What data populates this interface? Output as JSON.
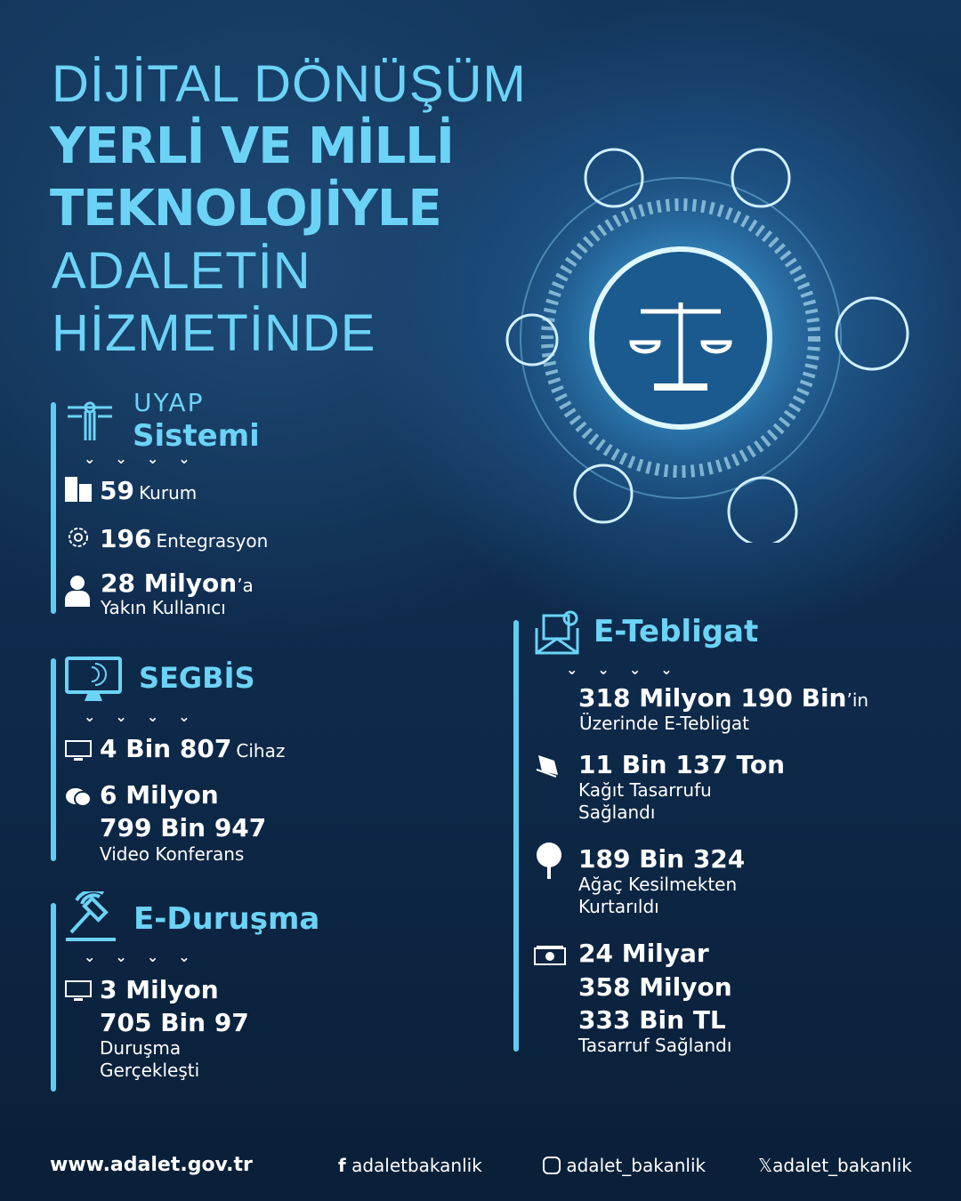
{
  "title": {
    "line1": "DİJİTAL DÖNÜŞÜM",
    "line2": "YERLİ VE MİLLİ",
    "line3": "TEKNOLOJİYLE",
    "line4": "ADALETİN",
    "line5": "HİZMETİNDE"
  },
  "uyap": {
    "title1": "UYAP",
    "title2": "Sistemi",
    "items": [
      {
        "value": "59",
        "label": "Kurum",
        "icon": "buildings-icon"
      },
      {
        "value": "196",
        "label": "Entegrasyon",
        "icon": "gear-network-icon"
      },
      {
        "value": "28 Milyon",
        "suffix": "’a",
        "label": "Yakın Kullanıcı",
        "icon": "user-icon"
      }
    ]
  },
  "segbis": {
    "title": "SEGBİS",
    "items": [
      {
        "value": "4 Bin 807",
        "label": "Cihaz",
        "icon": "monitor-icon"
      },
      {
        "value1": "6 Milyon",
        "value2": "799 Bin 947",
        "label": "Video Konferans",
        "icon": "chat-icon"
      }
    ]
  },
  "eduruşma": {
    "title": "E-Duruşma",
    "items": [
      {
        "value1": "3 Milyon",
        "value2": "705 Bin 97",
        "label1": "Duruşma",
        "label2": "Gerçekleşti",
        "icon": "monitor-icon"
      }
    ]
  },
  "etebligat": {
    "title": "E-Tebligat",
    "items": [
      {
        "value": "318 Milyon 190 Bin",
        "suffix": "’in",
        "label": "Üzerinde E-Tebligat",
        "icon": "envelope-icon"
      },
      {
        "value": "11 Bin 137 Ton",
        "label1": "Kağıt Tasarrufu",
        "label2": "Sağlandı",
        "icon": "paper-stack-icon"
      },
      {
        "value": "189 Bin 324",
        "label1": "Ağaç Kesilmekten",
        "label2": "Kurtarıldı",
        "icon": "tree-icon"
      },
      {
        "value1": "24 Milyar",
        "value2": "358 Milyon",
        "value3": "333 Bin TL",
        "label": "Tasarruf Sağlandı",
        "icon": "money-icon"
      }
    ]
  },
  "footer": {
    "website": "www.adalet.gov.tr",
    "facebook": "adaletbakanlik",
    "instagram": "adalet_bakanlik",
    "x": "adalet_bakanlik"
  },
  "colors": {
    "accent": "#6cd3f6",
    "background": "#0e2a4b"
  }
}
